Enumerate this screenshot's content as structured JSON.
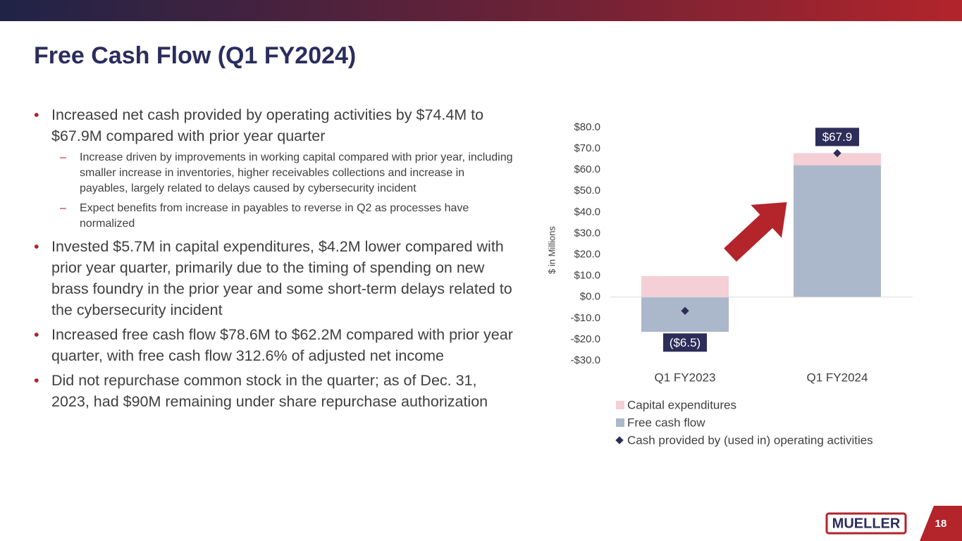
{
  "title": "Free Cash Flow (Q1 FY2024)",
  "bullets": [
    {
      "text": "Increased net cash provided by operating activities by $74.4M to $67.9M compared with prior year quarter",
      "sub": [
        "Increase driven by improvements in working capital compared with prior year, including smaller increase in inventories, higher receivables collections and increase in payables, largely related to delays caused by cybersecurity incident",
        "Expect benefits from increase in payables to reverse in Q2 as processes have normalized"
      ]
    },
    {
      "text": "Invested $5.7M in capital expenditures, $4.2M lower compared with prior year quarter, primarily due to the timing of spending on new brass foundry in the prior year and some short-term delays related to the cybersecurity incident"
    },
    {
      "text": "Increased free cash flow $78.6M to $62.2M compared with prior year quarter, with free cash flow 312.6% of adjusted net income"
    },
    {
      "text": "Did not repurchase common stock in the quarter; as of Dec. 31, 2023, had $90M remaining under share repurchase authorization"
    }
  ],
  "chart_data": {
    "type": "stacked_bar",
    "y_label": "$ in Millions",
    "categories": [
      "Q1 FY2023",
      "Q1 FY2024"
    ],
    "series": [
      {
        "name": "Capital expenditures",
        "type": "bar",
        "color": "#f4cfd5",
        "values": [
          9.9,
          5.7
        ]
      },
      {
        "name": "Free cash flow",
        "type": "bar",
        "color": "#abb7cb",
        "values": [
          -16.4,
          62.2
        ]
      },
      {
        "name": "Cash provided by (used in) operating activities",
        "type": "marker",
        "color": "#2d2d5a",
        "values": [
          -6.5,
          67.9
        ],
        "value_labels": [
          "($6.5)",
          "$67.9"
        ]
      }
    ],
    "ylim": [
      -30,
      80
    ],
    "yticks": [
      {
        "value": -30,
        "label": "-$30.0"
      },
      {
        "value": -20,
        "label": "-$20.0"
      },
      {
        "value": -10,
        "label": "-$10.0"
      },
      {
        "value": 0,
        "label": "$0.0"
      },
      {
        "value": 10,
        "label": "$10.0"
      },
      {
        "value": 20,
        "label": "$20.0"
      },
      {
        "value": 30,
        "label": "$30.0"
      },
      {
        "value": 40,
        "label": "$40.0"
      },
      {
        "value": 50,
        "label": "$50.0"
      },
      {
        "value": 60,
        "label": "$60.0"
      },
      {
        "value": 70,
        "label": "$70.0"
      },
      {
        "value": 80,
        "label": "$80.0"
      }
    ],
    "grid": false
  },
  "footer": {
    "logo": "MUELLER",
    "page": "18"
  }
}
